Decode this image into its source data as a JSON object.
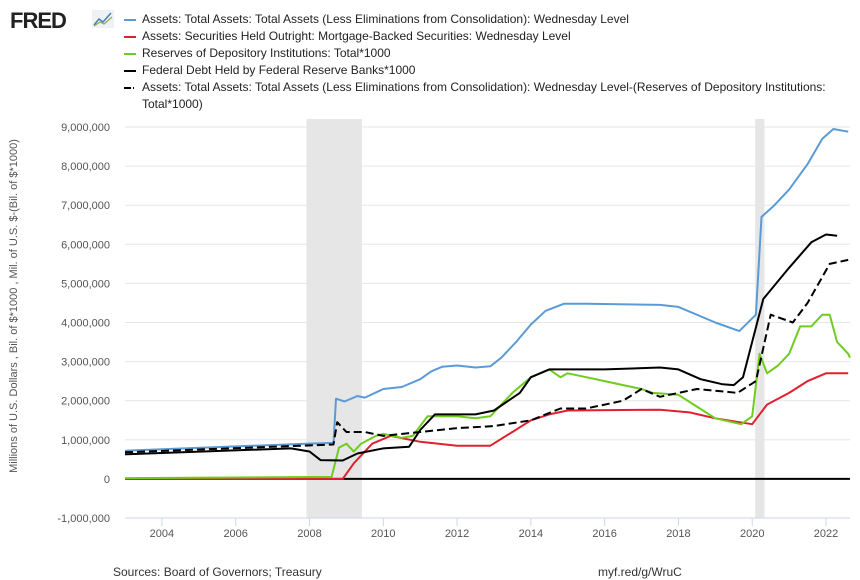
{
  "header": {
    "logo": "FRED"
  },
  "chart_data": {
    "type": "line",
    "title": "",
    "ylabel": "Millions of U.S. Dollars , Bil. of $*1000 , Mil. of U.S. $-(Bil. of $*1000)",
    "xlabel": "",
    "xlim": [
      2003.0,
      2022.65
    ],
    "ylim": [
      -1000000,
      9000000
    ],
    "xticks": [
      2004,
      2006,
      2008,
      2010,
      2012,
      2014,
      2016,
      2018,
      2020,
      2022
    ],
    "yticks": [
      -1000000,
      0,
      1000000,
      2000000,
      3000000,
      4000000,
      5000000,
      6000000,
      7000000,
      8000000,
      9000000
    ],
    "ytick_labels": [
      "-1,000,000",
      "0",
      "1,000,000",
      "2,000,000",
      "3,000,000",
      "4,000,000",
      "5,000,000",
      "6,000,000",
      "7,000,000",
      "8,000,000",
      "9,000,000"
    ],
    "grid": true,
    "legend_placement": "top",
    "recessions": [
      [
        2007.92,
        2009.42
      ],
      [
        2020.08,
        2020.33
      ]
    ],
    "series": [
      {
        "name": "Assets: Total Assets: Total Assets (Less Eliminations from Consolidation): Wednesday Level",
        "color": "#4572c4",
        "color_hex": "#5b9bd5",
        "dash": false,
        "points": [
          [
            2003.0,
            720000
          ],
          [
            2007.9,
            900000
          ],
          [
            2008.65,
            920000
          ],
          [
            2008.72,
            2050000
          ],
          [
            2008.95,
            1980000
          ],
          [
            2009.3,
            2120000
          ],
          [
            2009.5,
            2080000
          ],
          [
            2010,
            2300000
          ],
          [
            2010.5,
            2350000
          ],
          [
            2011,
            2550000
          ],
          [
            2011.3,
            2750000
          ],
          [
            2011.6,
            2870000
          ],
          [
            2012,
            2900000
          ],
          [
            2012.5,
            2850000
          ],
          [
            2012.9,
            2880000
          ],
          [
            2013.2,
            3100000
          ],
          [
            2013.6,
            3500000
          ],
          [
            2014,
            3950000
          ],
          [
            2014.4,
            4300000
          ],
          [
            2014.9,
            4480000
          ],
          [
            2015.5,
            4480000
          ],
          [
            2017.5,
            4450000
          ],
          [
            2018,
            4400000
          ],
          [
            2019,
            4000000
          ],
          [
            2019.65,
            3780000
          ],
          [
            2020.1,
            4200000
          ],
          [
            2020.25,
            6700000
          ],
          [
            2020.6,
            7000000
          ],
          [
            2021,
            7400000
          ],
          [
            2021.5,
            8050000
          ],
          [
            2021.9,
            8700000
          ],
          [
            2022.2,
            8950000
          ],
          [
            2022.6,
            8880000
          ]
        ]
      },
      {
        "name": "Assets: Securities Held Outright: Mortgage-Backed Securities: Wednesday Level",
        "color": "#e0202e",
        "dash": false,
        "points": [
          [
            2003.0,
            0
          ],
          [
            2008.9,
            0
          ],
          [
            2009.2,
            400000
          ],
          [
            2009.7,
            900000
          ],
          [
            2010.2,
            1100000
          ],
          [
            2011,
            950000
          ],
          [
            2012,
            850000
          ],
          [
            2012.9,
            850000
          ],
          [
            2013.5,
            1200000
          ],
          [
            2014,
            1500000
          ],
          [
            2014.5,
            1650000
          ],
          [
            2015,
            1750000
          ],
          [
            2017.5,
            1770000
          ],
          [
            2018.3,
            1700000
          ],
          [
            2019,
            1550000
          ],
          [
            2020,
            1400000
          ],
          [
            2020.4,
            1900000
          ],
          [
            2021,
            2200000
          ],
          [
            2021.5,
            2500000
          ],
          [
            2022,
            2700000
          ],
          [
            2022.6,
            2700000
          ]
        ]
      },
      {
        "name": "Reserves of Depository Institutions: Total*1000",
        "color": "#6fcc1e",
        "dash": false,
        "points": [
          [
            2003.0,
            20000
          ],
          [
            2008.6,
            50000
          ],
          [
            2008.8,
            800000
          ],
          [
            2009,
            900000
          ],
          [
            2009.2,
            700000
          ],
          [
            2009.4,
            900000
          ],
          [
            2009.8,
            1100000
          ],
          [
            2010,
            1150000
          ],
          [
            2010.5,
            1050000
          ],
          [
            2010.8,
            1100000
          ],
          [
            2011.2,
            1600000
          ],
          [
            2011.5,
            1600000
          ],
          [
            2012,
            1600000
          ],
          [
            2012.5,
            1550000
          ],
          [
            2012.9,
            1600000
          ],
          [
            2013.5,
            2200000
          ],
          [
            2014,
            2600000
          ],
          [
            2014.5,
            2800000
          ],
          [
            2014.8,
            2600000
          ],
          [
            2015,
            2700000
          ],
          [
            2015.5,
            2600000
          ],
          [
            2016,
            2500000
          ],
          [
            2016.5,
            2400000
          ],
          [
            2017,
            2300000
          ],
          [
            2017.3,
            2200000
          ],
          [
            2018,
            2150000
          ],
          [
            2018.5,
            1850000
          ],
          [
            2019,
            1550000
          ],
          [
            2019.7,
            1400000
          ],
          [
            2020,
            1600000
          ],
          [
            2020.2,
            3200000
          ],
          [
            2020.4,
            2700000
          ],
          [
            2020.7,
            2900000
          ],
          [
            2021,
            3200000
          ],
          [
            2021.3,
            3900000
          ],
          [
            2021.6,
            3900000
          ],
          [
            2021.9,
            4200000
          ],
          [
            2022.1,
            4200000
          ],
          [
            2022.3,
            3500000
          ],
          [
            2022.6,
            3200000
          ],
          [
            2022.65,
            3100000
          ]
        ]
      },
      {
        "name": "Federal Debt Held by Federal Reserve Banks*1000",
        "color": "#000000",
        "dash": false,
        "points": [
          [
            2003.0,
            630000
          ],
          [
            2007.5,
            780000
          ],
          [
            2008,
            700000
          ],
          [
            2008.3,
            480000
          ],
          [
            2008.9,
            470000
          ],
          [
            2009.3,
            650000
          ],
          [
            2010,
            780000
          ],
          [
            2010.7,
            820000
          ],
          [
            2011.0,
            1250000
          ],
          [
            2011.4,
            1650000
          ],
          [
            2012.5,
            1650000
          ],
          [
            2013,
            1750000
          ],
          [
            2013.7,
            2200000
          ],
          [
            2014.0,
            2600000
          ],
          [
            2014.5,
            2800000
          ],
          [
            2016,
            2800000
          ],
          [
            2017.5,
            2850000
          ],
          [
            2018,
            2800000
          ],
          [
            2018.6,
            2550000
          ],
          [
            2019.2,
            2420000
          ],
          [
            2019.5,
            2400000
          ],
          [
            2019.75,
            2600000
          ],
          [
            2020.3,
            4600000
          ],
          [
            2021,
            5400000
          ],
          [
            2021.6,
            6050000
          ],
          [
            2022,
            6250000
          ],
          [
            2022.3,
            6220000
          ]
        ]
      },
      {
        "name": "Assets: Total Assets: Total Assets (Less Eliminations from Consolidation): Wednesday Level-(Reserves of Depository Institutions: Total*1000)",
        "color": "#000000",
        "dash": true,
        "points": [
          [
            2003.0,
            680000
          ],
          [
            2008.65,
            880000
          ],
          [
            2008.75,
            1450000
          ],
          [
            2009,
            1200000
          ],
          [
            2009.5,
            1200000
          ],
          [
            2010,
            1100000
          ],
          [
            2011,
            1200000
          ],
          [
            2012,
            1300000
          ],
          [
            2013,
            1350000
          ],
          [
            2014,
            1500000
          ],
          [
            2014.8,
            1800000
          ],
          [
            2015.5,
            1800000
          ],
          [
            2016.5,
            2000000
          ],
          [
            2017,
            2300000
          ],
          [
            2017.5,
            2100000
          ],
          [
            2018.5,
            2300000
          ],
          [
            2019.6,
            2200000
          ],
          [
            2020.1,
            2500000
          ],
          [
            2020.5,
            4200000
          ],
          [
            2021.1,
            4000000
          ],
          [
            2021.5,
            4500000
          ],
          [
            2022.1,
            5500000
          ],
          [
            2022.6,
            5600000
          ]
        ]
      }
    ]
  },
  "footer": {
    "sources": "Sources: Board of Governors; Treasury",
    "link": "myf.red/g/WruC"
  }
}
